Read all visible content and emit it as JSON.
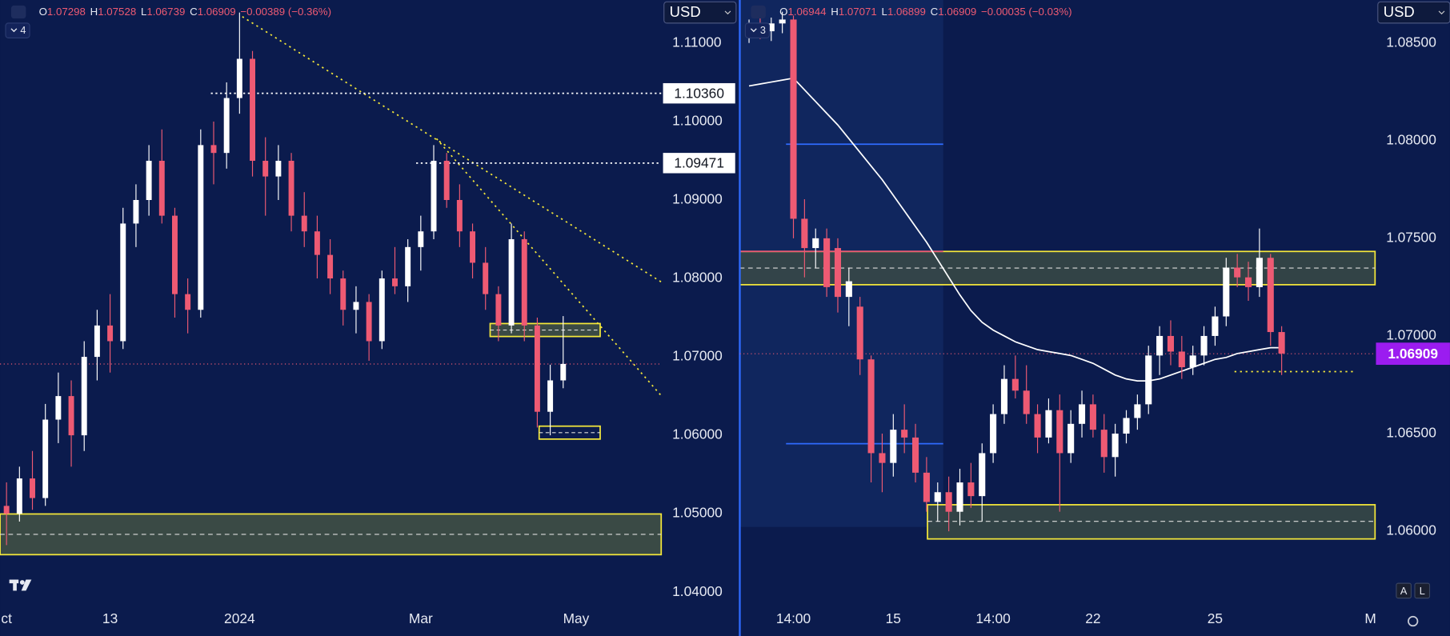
{
  "chart_data": [
    {
      "type": "candlestick",
      "currency": "USD",
      "indicator_count": "4",
      "ohlc_legend": [
        {
          "key": "O",
          "value": "1.07298"
        },
        {
          "key": "H",
          "value": "1.07528"
        },
        {
          "key": "L",
          "value": "1.06739"
        },
        {
          "key": "C",
          "value": "1.06909"
        }
      ],
      "change": "−0.00389 (−0.36%)",
      "up_color": "#ffffff",
      "down_color": "#ee5a73",
      "categories": [
        "ct",
        null,
        null,
        null,
        null,
        null,
        null,
        null,
        "13",
        null,
        null,
        null,
        null,
        null,
        null,
        null,
        null,
        null,
        "2024",
        null,
        null,
        null,
        null,
        null,
        null,
        null,
        null,
        null,
        null,
        null,
        null,
        null,
        "Mar",
        null,
        null,
        null,
        null,
        null,
        null,
        null,
        null,
        null,
        null,
        null,
        "May"
      ],
      "open": [
        1.051,
        1.05,
        1.0545,
        1.052,
        1.062,
        1.065,
        1.06,
        1.07,
        1.074,
        1.072,
        1.087,
        1.09,
        1.095,
        1.088,
        1.078,
        1.076,
        1.097,
        1.096,
        1.103,
        1.108,
        1.095,
        1.093,
        1.095,
        1.088,
        1.086,
        1.083,
        1.08,
        1.076,
        1.077,
        1.072,
        1.08,
        1.079,
        1.084,
        1.086,
        1.095,
        1.09,
        1.086,
        1.082,
        1.078,
        1.074,
        1.085,
        1.074,
        1.063,
        1.067,
        null
      ],
      "high": [
        1.054,
        1.056,
        1.058,
        1.064,
        1.068,
        1.067,
        1.072,
        1.076,
        1.078,
        1.089,
        1.092,
        1.097,
        1.099,
        1.089,
        1.08,
        1.099,
        1.1,
        1.105,
        1.1139,
        1.109,
        1.098,
        1.097,
        1.096,
        1.091,
        1.088,
        1.085,
        1.081,
        1.079,
        1.078,
        1.081,
        1.084,
        1.085,
        1.088,
        1.097,
        1.096,
        1.092,
        1.087,
        1.084,
        1.079,
        1.087,
        1.086,
        1.075,
        1.069,
        1.0752,
        null
      ],
      "low": [
        1.046,
        1.049,
        1.0505,
        1.051,
        1.059,
        1.056,
        1.058,
        1.067,
        1.068,
        1.071,
        1.084,
        1.088,
        1.087,
        1.075,
        1.073,
        1.075,
        1.092,
        1.094,
        1.101,
        1.093,
        1.088,
        1.09,
        1.086,
        1.084,
        1.08,
        1.078,
        1.074,
        1.073,
        1.0695,
        1.071,
        1.078,
        1.077,
        1.081,
        1.085,
        1.089,
        1.084,
        1.08,
        1.076,
        1.072,
        1.073,
        1.072,
        1.061,
        1.06,
        1.066,
        null
      ],
      "close": [
        1.05,
        1.0545,
        1.052,
        1.062,
        1.065,
        1.06,
        1.07,
        1.074,
        1.072,
        1.087,
        1.09,
        1.095,
        1.088,
        1.078,
        1.076,
        1.097,
        1.096,
        1.103,
        1.108,
        1.095,
        1.093,
        1.095,
        1.088,
        1.086,
        1.083,
        1.08,
        1.076,
        1.077,
        1.072,
        1.08,
        1.079,
        1.084,
        1.086,
        1.095,
        1.09,
        1.086,
        1.082,
        1.078,
        1.074,
        1.085,
        1.074,
        1.063,
        1.067,
        1.0691,
        null
      ],
      "ylim": [
        1.0383,
        1.1155
      ],
      "yticks": [
        {
          "value": 1.04,
          "label": "1.04000"
        },
        {
          "value": 1.05,
          "label": "1.05000"
        },
        {
          "value": 1.06,
          "label": "1.06000"
        },
        {
          "value": 1.07,
          "label": "1.07000"
        },
        {
          "value": 1.08,
          "label": "1.08000"
        },
        {
          "value": 1.09,
          "label": "1.09000"
        },
        {
          "value": 1.1,
          "label": "1.10000"
        },
        {
          "value": 1.11,
          "label": "1.11000"
        }
      ],
      "price_lines": [
        {
          "value": 1.1036,
          "label": "1.10360"
        },
        {
          "value": 1.09471,
          "label": "1.09471"
        }
      ],
      "last_price": 1.06909,
      "grid": false
    },
    {
      "type": "candlestick",
      "currency": "USD",
      "indicator_count": "3",
      "ohlc_legend": [
        {
          "key": "O",
          "value": "1.06944"
        },
        {
          "key": "H",
          "value": "1.07071"
        },
        {
          "key": "L",
          "value": "1.06899"
        },
        {
          "key": "C",
          "value": "1.06909"
        }
      ],
      "change": "−0.00035 (−0.03%)",
      "up_color": "#ffffff",
      "down_color": "#ee5a73",
      "categories": [
        null,
        null,
        null,
        null,
        "14:00",
        null,
        null,
        null,
        null,
        null,
        null,
        null,
        null,
        "15",
        null,
        null,
        null,
        null,
        null,
        null,
        null,
        null,
        "14:00",
        null,
        null,
        null,
        null,
        null,
        null,
        null,
        null,
        "22",
        null,
        null,
        null,
        null,
        null,
        null,
        null,
        null,
        null,
        null,
        "25",
        null,
        null,
        null,
        null,
        null,
        null,
        null,
        null,
        null,
        null,
        null,
        null,
        null,
        "M"
      ],
      "open": [
        1.0855,
        1.0858,
        1.0856,
        1.086,
        1.0862,
        1.076,
        1.0745,
        1.075,
        1.0745,
        1.072,
        1.0715,
        1.0688,
        1.064,
        1.0635,
        1.0652,
        1.0648,
        1.063,
        1.0615,
        1.062,
        1.061,
        1.0625,
        1.0618,
        1.064,
        1.066,
        1.0678,
        1.0672,
        1.066,
        1.0648,
        1.0662,
        1.064,
        1.0655,
        1.0665,
        1.0652,
        1.0638,
        1.065,
        1.0658,
        1.0665,
        1.069,
        1.07,
        1.0692,
        1.0684,
        1.069,
        1.07,
        1.071,
        1.0735,
        1.073,
        1.0725,
        1.074,
        1.0702,
        null,
        null,
        null,
        null,
        null,
        null,
        null,
        null
      ],
      "high": [
        1.0862,
        1.0865,
        1.0863,
        1.0866,
        1.0864,
        1.077,
        1.0755,
        1.0755,
        1.075,
        1.0735,
        1.072,
        1.069,
        1.065,
        1.066,
        1.0665,
        1.0655,
        1.0638,
        1.0625,
        1.0628,
        1.0632,
        1.0635,
        1.0645,
        1.0665,
        1.0685,
        1.069,
        1.0685,
        1.0665,
        1.0668,
        1.067,
        1.0662,
        1.0672,
        1.067,
        1.066,
        1.0655,
        1.0662,
        1.067,
        1.0695,
        1.0705,
        1.0708,
        1.07,
        1.0695,
        1.0705,
        1.0715,
        1.074,
        1.0742,
        1.0738,
        1.0755,
        1.0742,
        1.0705,
        null,
        null,
        null,
        null,
        null,
        null,
        null,
        null
      ],
      "low": [
        1.085,
        1.0852,
        1.0851,
        1.0855,
        1.075,
        1.073,
        1.0735,
        1.072,
        1.0712,
        1.0705,
        1.068,
        1.0625,
        1.062,
        1.0628,
        1.064,
        1.0625,
        1.061,
        1.0605,
        1.06,
        1.0603,
        1.0612,
        1.0605,
        1.0635,
        1.0655,
        1.0668,
        1.0655,
        1.064,
        1.0645,
        1.061,
        1.0635,
        1.0648,
        1.0648,
        1.063,
        1.0628,
        1.0645,
        1.0652,
        1.066,
        1.068,
        1.0685,
        1.0678,
        1.068,
        1.0685,
        1.0695,
        1.0705,
        1.0725,
        1.0718,
        1.072,
        1.0695,
        1.068,
        null,
        null,
        null,
        null,
        null,
        null,
        null,
        null
      ],
      "close": [
        1.0858,
        1.0856,
        1.086,
        1.0862,
        1.076,
        1.0745,
        1.075,
        1.0725,
        1.072,
        1.0728,
        1.0688,
        1.064,
        1.0635,
        1.0652,
        1.0648,
        1.063,
        1.0615,
        1.062,
        1.061,
        1.0625,
        1.0618,
        1.064,
        1.066,
        1.0678,
        1.0672,
        1.066,
        1.0648,
        1.0662,
        1.064,
        1.0655,
        1.0665,
        1.0652,
        1.0638,
        1.065,
        1.0658,
        1.0665,
        1.069,
        1.07,
        1.0692,
        1.0684,
        1.069,
        1.07,
        1.071,
        1.0735,
        1.073,
        1.0725,
        1.074,
        1.0702,
        1.0691,
        null,
        null,
        null,
        null,
        null,
        null,
        null,
        null
      ],
      "ma": {
        "color": "#ffffff",
        "values": [
          1.0828,
          1.0829,
          1.083,
          1.0831,
          1.0832,
          1.0826,
          1.082,
          1.0814,
          1.0808,
          1.0801,
          1.0794,
          1.0787,
          1.078,
          1.0772,
          1.0764,
          1.0756,
          1.0748,
          1.0739,
          1.073,
          1.0721,
          1.0713,
          1.0707,
          1.0703,
          1.07,
          1.0697,
          1.0695,
          1.0693,
          1.0692,
          1.0691,
          1.069,
          1.0688,
          1.0686,
          1.0683,
          1.068,
          1.0678,
          1.0677,
          1.0677,
          1.0678,
          1.068,
          1.0682,
          1.0684,
          1.0686,
          1.0688,
          1.0689,
          1.0691,
          1.0692,
          1.0693,
          1.0694,
          1.0694,
          null,
          null,
          null,
          null,
          null,
          null,
          null,
          null
        ]
      },
      "ylim": [
        1.0562,
        1.0872
      ],
      "yticks": [
        {
          "value": 1.06,
          "label": "1.06000"
        },
        {
          "value": 1.065,
          "label": "1.06500"
        },
        {
          "value": 1.07,
          "label": "1.07000"
        },
        {
          "value": 1.075,
          "label": "1.07500"
        },
        {
          "value": 1.08,
          "label": "1.08000"
        },
        {
          "value": 1.085,
          "label": "1.08500"
        }
      ],
      "price_lines": [],
      "last_price": {
        "value": 1.06909,
        "label": "1.06909"
      },
      "grid": false
    }
  ],
  "ui": {
    "buttons": [
      "A",
      "L"
    ]
  }
}
